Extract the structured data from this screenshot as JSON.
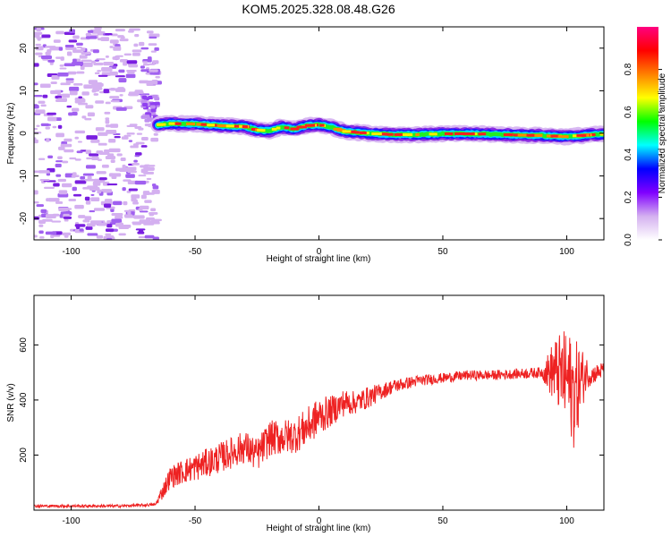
{
  "title": "KOM5.2025.328.08.48.G26",
  "chart_data": [
    {
      "type": "heatmap",
      "title": "KOM5.2025.328.08.48.G26",
      "xlabel": "Height of straight line (km)",
      "ylabel": "Frequency (Hz)",
      "xlim": [
        -115,
        115
      ],
      "ylim": [
        -25,
        25
      ],
      "xticks": [
        -100,
        -50,
        0,
        50,
        100
      ],
      "yticks": [
        -20,
        -10,
        0,
        10,
        20
      ],
      "noise_region_x": [
        -115,
        -65
      ],
      "signal_onset_x": -65,
      "ridge_frequency": {
        "x": [
          -65,
          -60,
          -50,
          -40,
          -30,
          -25,
          -20,
          -15,
          -10,
          -5,
          0,
          5,
          10,
          20,
          30,
          40,
          50,
          60,
          70,
          80,
          90,
          100,
          110,
          115
        ],
        "y": [
          2.0,
          2.3,
          2.2,
          1.8,
          1.6,
          0.8,
          0.6,
          1.5,
          1.0,
          1.8,
          2.0,
          1.5,
          0.5,
          0.0,
          -0.3,
          -0.3,
          -0.1,
          -0.1,
          -0.2,
          -0.4,
          -0.5,
          -0.8,
          -0.3,
          -0.2
        ]
      },
      "colorbar": {
        "label": "Normalized spectral amplitude",
        "range": [
          0,
          1
        ],
        "ticks": [
          "0.0",
          "0.2",
          "0.4",
          "0.6",
          "0.8"
        ],
        "colors": [
          "#ffffff",
          "#d4b0f0",
          "#8000ff",
          "#0000ff",
          "#00ffff",
          "#00ff00",
          "#ffff00",
          "#ff8000",
          "#ff0000",
          "#ff0080"
        ]
      }
    },
    {
      "type": "line",
      "xlabel": "Height of straight line (km)",
      "ylabel": "SNR (v/v)",
      "xlim": [
        -115,
        115
      ],
      "ylim": [
        0,
        780
      ],
      "xticks": [
        -100,
        -50,
        0,
        50,
        100
      ],
      "yticks": [
        200,
        400,
        600
      ],
      "color": "#ee2222",
      "series": [
        {
          "name": "SNR",
          "x": [
            -115,
            -100,
            -80,
            -66,
            -63,
            -60,
            -55,
            -50,
            -40,
            -30,
            -25,
            -20,
            -10,
            -5,
            0,
            5,
            10,
            15,
            20,
            25,
            30,
            40,
            50,
            60,
            70,
            80,
            90,
            95,
            100,
            103,
            105,
            108,
            110,
            115
          ],
          "y": [
            15,
            15,
            15,
            20,
            70,
            120,
            140,
            155,
            190,
            230,
            200,
            260,
            270,
            300,
            340,
            360,
            390,
            390,
            410,
            430,
            450,
            470,
            480,
            490,
            490,
            495,
            500,
            505,
            480,
            420,
            460,
            500,
            490,
            510
          ],
          "noise_amplitude": [
            5,
            5,
            5,
            5,
            30,
            40,
            45,
            50,
            55,
            60,
            60,
            65,
            65,
            70,
            70,
            55,
            50,
            40,
            40,
            30,
            25,
            20,
            18,
            18,
            18,
            18,
            20,
            120,
            180,
            200,
            150,
            60,
            35,
            30
          ]
        }
      ]
    }
  ]
}
